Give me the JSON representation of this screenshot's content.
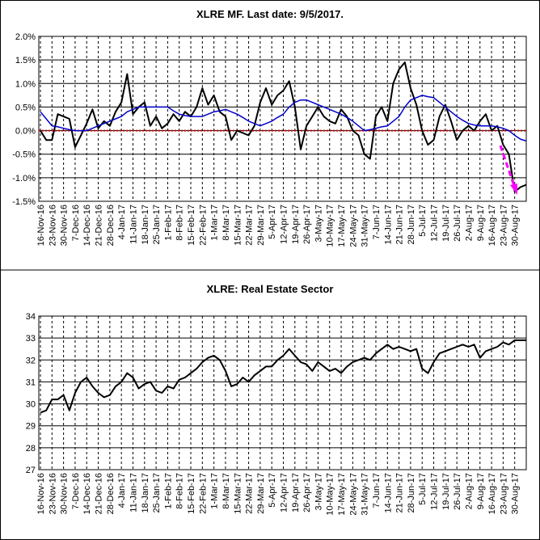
{
  "chart_data": [
    {
      "type": "line",
      "title": "XLRE MF. Last date: 9/5/2017.",
      "categories": [
        "16-Nov-16",
        null,
        "23-Nov-16",
        null,
        "30-Nov-16",
        null,
        "7-Dec-16",
        null,
        "14-Dec-16",
        null,
        "21-Dec-16",
        null,
        "28-Dec-16",
        null,
        "4-Jan-17",
        null,
        "11-Jan-17",
        null,
        "18-Jan-17",
        null,
        "25-Jan-17",
        null,
        "1-Feb-17",
        null,
        "8-Feb-17",
        null,
        "15-Feb-17",
        null,
        "22-Feb-17",
        null,
        "1-Mar-17",
        null,
        "8-Mar-17",
        null,
        "15-Mar-17",
        null,
        "22-Mar-17",
        null,
        "29-Mar-17",
        null,
        "5-Apr-17",
        null,
        "12-Apr-17",
        null,
        "19-Apr-17",
        null,
        "26-Apr-17",
        null,
        "3-May-17",
        null,
        "10-May-17",
        null,
        "17-May-17",
        null,
        "24-May-17",
        null,
        "31-May-17",
        null,
        "7-Jun-17",
        null,
        "14-Jun-17",
        null,
        "21-Jun-17",
        null,
        "28-Jun-17",
        null,
        "5-Jul-17",
        null,
        "12-Jul-17",
        null,
        "19-Jul-17",
        null,
        "26-Jul-17",
        null,
        "2-Aug-17",
        null,
        "9-Aug-17",
        null,
        "16-Aug-17",
        null,
        "23-Aug-17",
        null,
        "30-Aug-17",
        null,
        null
      ],
      "series": [
        {
          "color": "#000000",
          "width": 2,
          "values": [
            0.0,
            -0.2,
            -0.2,
            0.35,
            0.3,
            0.25,
            -0.35,
            -0.1,
            0.15,
            0.45,
            0.05,
            0.2,
            0.1,
            0.4,
            0.6,
            1.2,
            0.35,
            0.5,
            0.6,
            0.1,
            0.3,
            0.05,
            0.15,
            0.35,
            0.2,
            0.4,
            0.3,
            0.5,
            0.9,
            0.55,
            0.75,
            0.4,
            0.3,
            -0.2,
            0.0,
            -0.05,
            -0.1,
            0.1,
            0.6,
            0.9,
            0.55,
            0.75,
            0.85,
            1.05,
            0.5,
            -0.4,
            0.1,
            0.3,
            0.5,
            0.3,
            0.2,
            0.15,
            0.45,
            0.3,
            0.0,
            -0.1,
            -0.5,
            -0.6,
            0.3,
            0.5,
            0.2,
            1.0,
            1.3,
            1.45,
            0.9,
            0.55,
            0.0,
            -0.3,
            -0.2,
            0.3,
            0.55,
            0.2,
            -0.2,
            0.0,
            0.1,
            0.0,
            0.2,
            0.35,
            0.0,
            0.1,
            -0.3,
            -0.5,
            -1.3,
            -1.2,
            -1.15
          ]
        },
        {
          "color": "#0000cc",
          "width": 1.5,
          "values": [
            0.4,
            0.25,
            0.1,
            0.08,
            0.05,
            0.02,
            0.0,
            0.0,
            0.0,
            0.05,
            0.1,
            0.15,
            0.2,
            0.25,
            0.3,
            0.4,
            0.45,
            0.5,
            0.5,
            0.5,
            0.5,
            0.5,
            0.5,
            0.42,
            0.35,
            0.32,
            0.3,
            0.3,
            0.3,
            0.35,
            0.4,
            0.42,
            0.45,
            0.4,
            0.35,
            0.28,
            0.2,
            0.15,
            0.1,
            0.15,
            0.2,
            0.28,
            0.35,
            0.5,
            0.6,
            0.65,
            0.65,
            0.6,
            0.55,
            0.5,
            0.45,
            0.4,
            0.35,
            0.28,
            0.2,
            0.1,
            0.0,
            0.02,
            0.05,
            0.08,
            0.1,
            0.2,
            0.3,
            0.5,
            0.65,
            0.7,
            0.75,
            0.72,
            0.7,
            0.6,
            0.5,
            0.4,
            0.3,
            0.22,
            0.15,
            0.12,
            0.1,
            0.1,
            0.1,
            0.08,
            0.05,
            0.0,
            -0.1,
            -0.18,
            -0.22
          ]
        }
      ],
      "hline": 0,
      "hline_color": "#cc0000",
      "ylim": [
        -1.5,
        2
      ],
      "yticks": [
        {
          "value": -1.5,
          "label": "-1.5%"
        },
        {
          "value": -1,
          "label": "-1.0%"
        },
        {
          "value": -0.5,
          "label": "-0.5%"
        },
        {
          "value": 0,
          "label": "0.0%"
        },
        {
          "value": 0.5,
          "label": "0.5%"
        },
        {
          "value": 1,
          "label": "1.0%"
        },
        {
          "value": 1.5,
          "label": "1.5%"
        },
        {
          "value": 2,
          "label": "2.0%"
        }
      ],
      "grid": true
    },
    {
      "type": "line",
      "title": "XLRE: Real Estate Sector",
      "categories": [
        "16-Nov-16",
        null,
        "23-Nov-16",
        null,
        "30-Nov-16",
        null,
        "7-Dec-16",
        null,
        "14-Dec-16",
        null,
        "21-Dec-16",
        null,
        "28-Dec-16",
        null,
        "4-Jan-17",
        null,
        "11-Jan-17",
        null,
        "18-Jan-17",
        null,
        "25-Jan-17",
        null,
        "1-Feb-17",
        null,
        "8-Feb-17",
        null,
        "15-Feb-17",
        null,
        "22-Feb-17",
        null,
        "1-Mar-17",
        null,
        "8-Mar-17",
        null,
        "15-Mar-17",
        null,
        "22-Mar-17",
        null,
        "29-Mar-17",
        null,
        "5-Apr-17",
        null,
        "12-Apr-17",
        null,
        "19-Apr-17",
        null,
        "26-Apr-17",
        null,
        "3-May-17",
        null,
        "10-May-17",
        null,
        "17-May-17",
        null,
        "24-May-17",
        null,
        "31-May-17",
        null,
        "7-Jun-17",
        null,
        "14-Jun-17",
        null,
        "21-Jun-17",
        null,
        "28-Jun-17",
        null,
        "5-Jul-17",
        null,
        "12-Jul-17",
        null,
        "19-Jul-17",
        null,
        "26-Jul-17",
        null,
        "2-Aug-17",
        null,
        "9-Aug-17",
        null,
        "16-Aug-17",
        null,
        "23-Aug-17",
        null,
        "30-Aug-17",
        null,
        null
      ],
      "series": [
        {
          "color": "#000000",
          "width": 2,
          "values": [
            29.6,
            29.7,
            30.2,
            30.2,
            30.4,
            29.7,
            30.5,
            31.0,
            31.2,
            30.8,
            30.5,
            30.3,
            30.4,
            30.8,
            31.0,
            31.4,
            31.2,
            30.7,
            30.9,
            31.0,
            30.6,
            30.5,
            30.8,
            30.7,
            31.1,
            31.2,
            31.4,
            31.6,
            31.9,
            32.1,
            32.2,
            32.0,
            31.5,
            30.8,
            30.9,
            31.2,
            31.0,
            31.3,
            31.5,
            31.7,
            31.7,
            32.0,
            32.2,
            32.5,
            32.2,
            31.9,
            31.8,
            31.5,
            31.9,
            31.7,
            31.5,
            31.6,
            31.4,
            31.7,
            31.9,
            32.0,
            32.1,
            32.0,
            32.3,
            32.5,
            32.7,
            32.5,
            32.6,
            32.5,
            32.4,
            32.5,
            31.6,
            31.4,
            31.9,
            32.3,
            32.4,
            32.5,
            32.6,
            32.7,
            32.6,
            32.7,
            32.1,
            32.4,
            32.5,
            32.6,
            32.8,
            32.7,
            32.9,
            32.9,
            32.9
          ]
        }
      ],
      "ylim": [
        27,
        34
      ],
      "yticks": [
        27,
        28,
        29,
        30,
        31,
        32,
        33,
        34
      ],
      "grid": true
    }
  ]
}
